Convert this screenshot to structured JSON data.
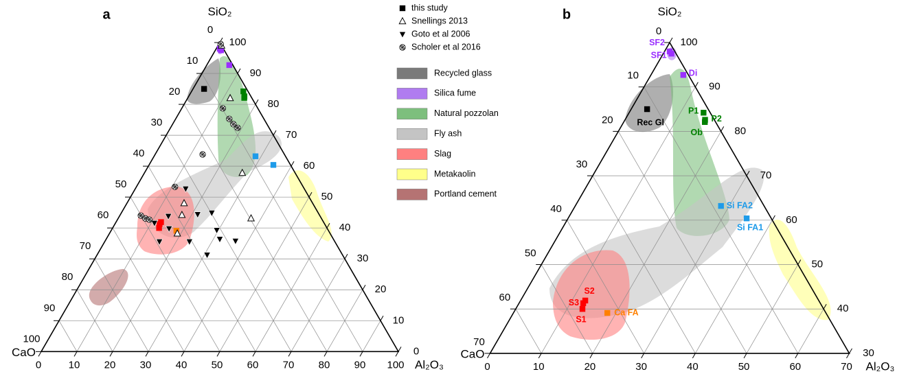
{
  "chart_data": [
    {
      "type": "ternary",
      "panel_label": "a",
      "top_label": "SiO₂",
      "left_label": "CaO",
      "right_label": "Al₂O₃",
      "si_range": [
        0,
        100
      ],
      "al_ticks": [
        0,
        10,
        20,
        30,
        40,
        50,
        60,
        70,
        80,
        90,
        100
      ],
      "ca_ticks": [
        0,
        10,
        20,
        30,
        40,
        50,
        60,
        70,
        80,
        90,
        100
      ],
      "si_ticks": [
        100,
        90,
        80,
        70,
        60,
        50,
        40,
        30,
        20,
        10,
        0
      ],
      "series": [
        {
          "name": "this study",
          "marker": "square",
          "color": "#000000",
          "colors": [
            "#9b30ff",
            "#9b30ff",
            "#9b30ff",
            "#000000",
            "#008000",
            "#008000",
            "#008000",
            "#1e9be9",
            "#1e9be9",
            "#ff0000",
            "#ff0000",
            "#ff0000",
            "#ff8000"
          ],
          "values": [
            [
              98,
              1
            ],
            [
              97.5,
              1.6
            ],
            [
              92.7,
              6.3
            ],
            [
              85,
              3.1
            ],
            [
              84.2,
              14.5
            ],
            [
              82.6,
              15.6
            ],
            [
              82.1,
              15.8
            ],
            [
              63.2,
              28.4
            ],
            [
              60.4,
              34.8
            ],
            [
              41.9,
              12.6
            ],
            [
              41.3,
              12.5
            ],
            [
              40.0,
              13.0
            ],
            [
              39.1,
              18.3
            ]
          ]
        },
        {
          "name": "Snellings 2013",
          "marker": "triangle",
          "color": "#000000",
          "values": [
            [
              99,
              1
            ],
            [
              82,
              11.9
            ],
            [
              57.8,
              27.4
            ],
            [
              48,
              16
            ],
            [
              44.2,
              17.3
            ],
            [
              43.1,
              37.2
            ],
            [
              38.2,
              19.0
            ]
          ]
        },
        {
          "name": "Goto et al 2006",
          "marker": "triangle-down",
          "color": "#000000",
          "values": [
            [
              52.7,
              14.1
            ],
            [
              43.8,
              13.7
            ],
            [
              44.4,
              21.6
            ],
            [
              44.9,
              25.3
            ],
            [
              41.6,
              10.9
            ],
            [
              39.3,
              29.5
            ],
            [
              39.8,
              15.9
            ],
            [
              35.6,
              23.7
            ],
            [
              35.6,
              15.3
            ],
            [
              36.4,
              31.8
            ],
            [
              35.8,
              36.5
            ],
            [
              31.3,
              30.8
            ]
          ]
        },
        {
          "name": "Scholer et al 2016",
          "marker": "circle-x",
          "color": "#000000",
          "values": [
            [
              99.5,
              0.5
            ],
            [
              78.7,
              11.5
            ],
            [
              75.3,
              15.0
            ],
            [
              73.6,
              17.0
            ],
            [
              72.4,
              18.8
            ],
            [
              63.8,
              13.3
            ],
            [
              53.3,
              10.8
            ],
            [
              44,
              5.9
            ],
            [
              43.1,
              7.6
            ],
            [
              42.7,
              8.9
            ]
          ]
        }
      ]
    },
    {
      "type": "ternary",
      "panel_label": "b",
      "top_label": "SiO₂",
      "left_label": "CaO",
      "right_label": "Al₂O₃",
      "si_range": [
        30,
        100
      ],
      "al_ticks": [
        0,
        10,
        20,
        30,
        40,
        50,
        60,
        70
      ],
      "ca_ticks": [
        0,
        10,
        20,
        30,
        40,
        50,
        60,
        70
      ],
      "si_ticks": [
        100,
        90,
        80,
        70,
        60,
        50,
        40,
        30
      ],
      "series": [
        {
          "marker": "square",
          "colors": [
            "#9b30ff",
            "#9b30ff",
            "#9b30ff",
            "#000000",
            "#008000",
            "#008000",
            "#008000",
            "#1e9be9",
            "#1e9be9",
            "#ff0000",
            "#ff0000",
            "#ff0000",
            "#ff8000"
          ],
          "labels": [
            "SF2",
            "SF1",
            "Di",
            "Rec Gl",
            "P1",
            "P2",
            "Ob",
            "Si FA2",
            "Si FA1",
            "S2",
            "S3",
            "S1",
            "Ca FA"
          ],
          "values": [
            [
              98,
              1
            ],
            [
              97.5,
              1.6
            ],
            [
              92.7,
              6.3
            ],
            [
              85,
              3.1
            ],
            [
              84.2,
              14.5
            ],
            [
              82.6,
              15.6
            ],
            [
              82.1,
              15.8
            ],
            [
              63.2,
              28.4
            ],
            [
              60.4,
              34.8
            ],
            [
              41.9,
              12.6
            ],
            [
              41.3,
              12.5
            ],
            [
              40.0,
              13.0
            ],
            [
              39.1,
              18.3
            ]
          ]
        }
      ]
    }
  ],
  "regions": [
    {
      "name": "Recycled glass",
      "color": "#7a7a7a"
    },
    {
      "name": "Silica fume",
      "color": "#b07cf0"
    },
    {
      "name": "Natural pozzolan",
      "color": "#7dbf7d"
    },
    {
      "name": "Fly ash",
      "color": "#c4c4c4"
    },
    {
      "name": "Slag",
      "color": "#ff8080"
    },
    {
      "name": "Metakaolin",
      "color": "#ffff8a"
    },
    {
      "name": "Portland cement",
      "color": "#b57373"
    }
  ]
}
